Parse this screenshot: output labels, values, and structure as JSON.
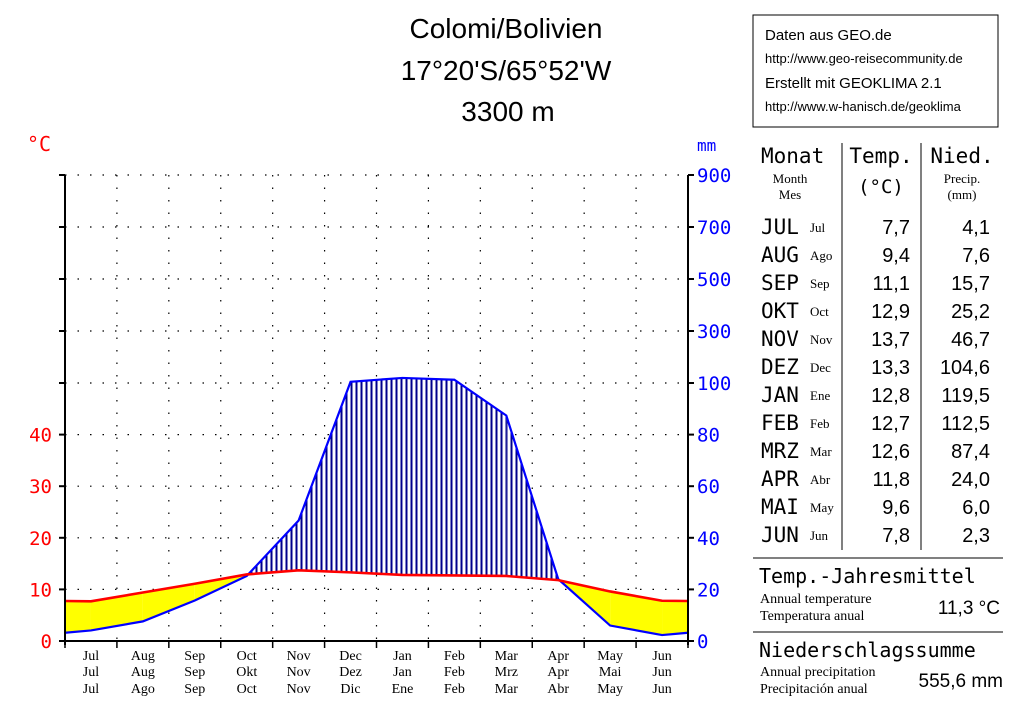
{
  "header": {
    "title_line1": "Colomi/Bolivien",
    "title_line2": "17°20'S/65°52'W",
    "title_line3": "3300 m"
  },
  "source_box": {
    "line1": "Daten aus GEO.de",
    "line2": "http://www.geo-reisecommunity.de",
    "line3": "Erstellt mit GEOKLIMA 2.1",
    "line4": "http://www.w-hanisch.de/geoklima"
  },
  "colors": {
    "temperature": "#ff0000",
    "precipitation": "#0000ff",
    "arid_fill": "#ffff00",
    "humid_hatch": "#00008b"
  },
  "chart_data": {
    "type": "line",
    "left_unit": "°C",
    "right_unit": "mm",
    "temp_ticks": [
      "0",
      "10",
      "20",
      "30",
      "40"
    ],
    "precip_ticks": [
      "0",
      "20",
      "40",
      "60",
      "80",
      "100",
      "300",
      "500",
      "700",
      "900"
    ],
    "month_rows": [
      [
        "Jul",
        "Aug",
        "Sep",
        "Oct",
        "Nov",
        "Dec",
        "Jan",
        "Feb",
        "Mar",
        "Apr",
        "May",
        "Jun"
      ],
      [
        "Jul",
        "Aug",
        "Sep",
        "Okt",
        "Nov",
        "Dez",
        "Jan",
        "Feb",
        "Mrz",
        "Apr",
        "Mai",
        "Jun"
      ],
      [
        "Jul",
        "Ago",
        "Sep",
        "Oct",
        "Nov",
        "Dic",
        "Ene",
        "Feb",
        "Mar",
        "Abr",
        "May",
        "Jun"
      ]
    ],
    "temperature": [
      7.7,
      9.4,
      11.1,
      12.9,
      13.7,
      13.3,
      12.8,
      12.7,
      12.6,
      11.8,
      9.6,
      7.8
    ],
    "precipitation": [
      4.1,
      7.6,
      15.7,
      25.2,
      46.7,
      104.6,
      119.5,
      112.5,
      87.4,
      24.0,
      6.0,
      2.3
    ],
    "temp_range": [
      0,
      40
    ],
    "precip_range": [
      0,
      900
    ],
    "grid": true
  },
  "table": {
    "head_monat": "Monat",
    "head_month": "Month",
    "head_mes": "Mes",
    "head_temp": "Temp.",
    "head_temp_unit": "(°C)",
    "head_nied": "Nied.",
    "head_precip": "Precip.",
    "head_precip_unit": "(mm)",
    "rows": [
      {
        "de": "JUL",
        "es": "Jul",
        "temp": "7,7",
        "precip": "4,1"
      },
      {
        "de": "AUG",
        "es": "Ago",
        "temp": "9,4",
        "precip": "7,6"
      },
      {
        "de": "SEP",
        "es": "Sep",
        "temp": "11,1",
        "precip": "15,7"
      },
      {
        "de": "OKT",
        "es": "Oct",
        "temp": "12,9",
        "precip": "25,2"
      },
      {
        "de": "NOV",
        "es": "Nov",
        "temp": "13,7",
        "precip": "46,7"
      },
      {
        "de": "DEZ",
        "es": "Dec",
        "temp": "13,3",
        "precip": "104,6"
      },
      {
        "de": "JAN",
        "es": "Ene",
        "temp": "12,8",
        "precip": "119,5"
      },
      {
        "de": "FEB",
        "es": "Feb",
        "temp": "12,7",
        "precip": "112,5"
      },
      {
        "de": "MRZ",
        "es": "Mar",
        "temp": "12,6",
        "precip": "87,4"
      },
      {
        "de": "APR",
        "es": "Abr",
        "temp": "11,8",
        "precip": "24,0"
      },
      {
        "de": "MAI",
        "es": "May",
        "temp": "9,6",
        "precip": "6,0"
      },
      {
        "de": "JUN",
        "es": "Jun",
        "temp": "7,8",
        "precip": "2,3"
      }
    ]
  },
  "summary": {
    "temp_title": "Temp.-Jahresmittel",
    "temp_en": "Annual temperature",
    "temp_es": "Temperatura  anual",
    "temp_value": "11,3 °C",
    "precip_title": "Niederschlagssumme",
    "precip_en": "Annual precipitation",
    "precip_es": "Precipitación  anual",
    "precip_value": "555,6 mm"
  }
}
